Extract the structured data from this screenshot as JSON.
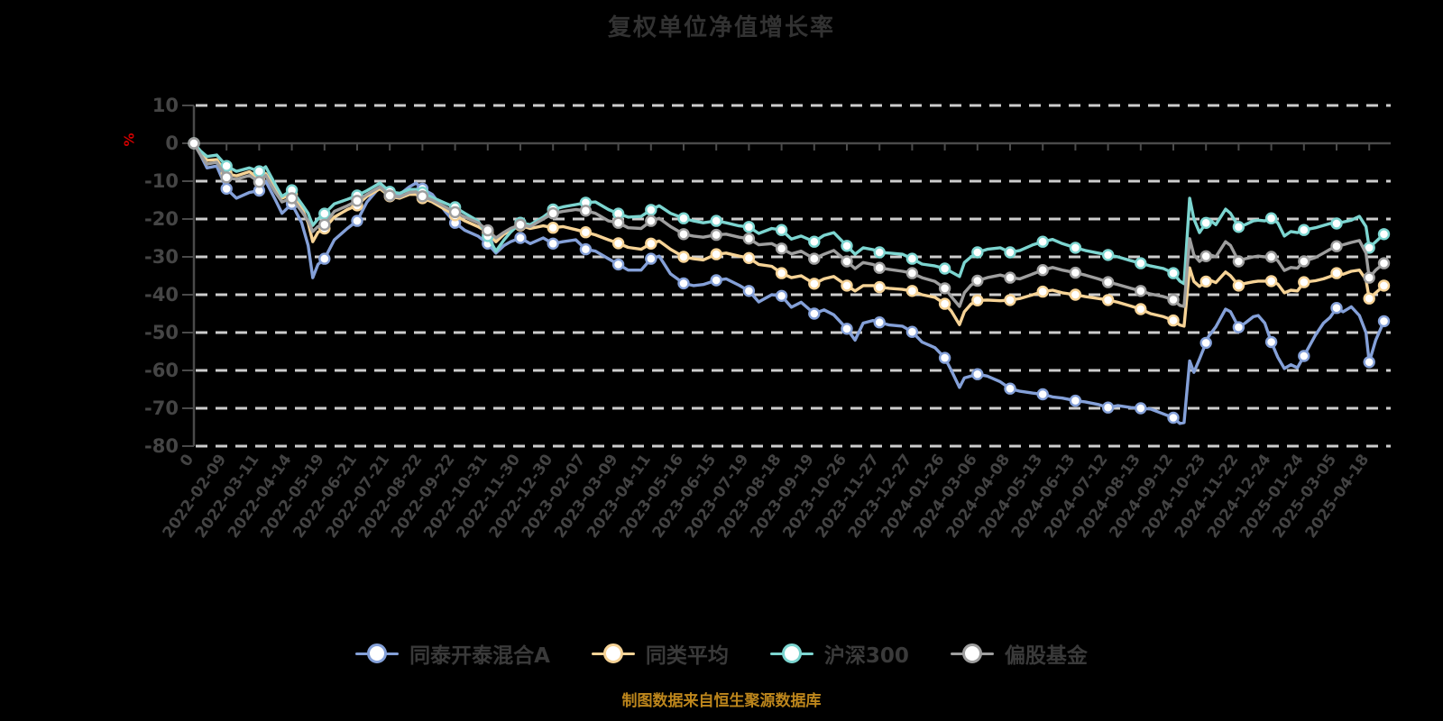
{
  "title": "复权单位净值增长率",
  "footer": "制图数据来自恒生聚源数据库",
  "background_color": "#000000",
  "y_axis": {
    "unit_label": "%",
    "unit_color": "#d40000",
    "ticks": [
      10,
      0,
      -10,
      -20,
      -30,
      -40,
      -50,
      -60,
      -70,
      -80
    ],
    "axis_color": "#4a4a4a",
    "grid_color": "#cdcdcd",
    "label_color": "#454545"
  },
  "legend": {
    "items": [
      {
        "label": "同泰开泰混合A",
        "color": "#84a0d8"
      },
      {
        "label": "同类平均",
        "color": "#f6d396"
      },
      {
        "label": "沪深300",
        "color": "#7cd5d0"
      },
      {
        "label": "偏股基金",
        "color": "#9e9e9e"
      }
    ]
  },
  "chart_data": {
    "type": "line",
    "title": "复权单位净值增长率",
    "ylabel": "%",
    "ylim": [
      -80,
      10
    ],
    "grid": "dashed-horizontal",
    "legend_position": "bottom",
    "x_tick_labels": [
      "0",
      "2022-02-09",
      "2022-03-11",
      "2022-04-14",
      "2022-05-19",
      "2022-06-21",
      "2022-07-21",
      "2022-08-22",
      "2022-09-22",
      "2022-10-31",
      "2022-11-30",
      "2022-12-30",
      "2023-02-07",
      "2023-03-09",
      "2023-04-11",
      "2023-05-16",
      "2023-06-15",
      "2023-07-19",
      "2023-08-18",
      "2023-09-19",
      "2023-10-26",
      "2023-11-27",
      "2023-12-27",
      "2024-01-26",
      "2024-03-06",
      "2024-04-08",
      "2024-05-13",
      "2024-06-13",
      "2024-07-12",
      "2024-08-13",
      "2024-09-12",
      "2024-10-23",
      "2024-11-22",
      "2024-12-24",
      "2025-01-24",
      "2025-03-05",
      "2025-04-18"
    ],
    "x_units": [
      0,
      0.2,
      0.4,
      0.7,
      1,
      1.3,
      1.7,
      2,
      2.2,
      2.5,
      2.7,
      3,
      3.3,
      3.5,
      3.64,
      3.8,
      4,
      4.3,
      4.7,
      5,
      5.3,
      5.7,
      6,
      6.3,
      6.6,
      6.8,
      7,
      7.3,
      7.7,
      8,
      8.3,
      8.7,
      9,
      9.25,
      9.5,
      9.7,
      10,
      10.3,
      10.7,
      11,
      11.3,
      11.7,
      12,
      12.3,
      12.7,
      13,
      13.3,
      13.7,
      14,
      14.25,
      14.6,
      15,
      15.3,
      15.6,
      16,
      16.3,
      16.7,
      17,
      17.3,
      17.7,
      18,
      18.3,
      18.6,
      19,
      19.3,
      19.6,
      20,
      20.25,
      20.5,
      20.8,
      21,
      21.3,
      21.7,
      22,
      22.3,
      22.7,
      23,
      23.2,
      23.45,
      23.6,
      23.8,
      24,
      24.3,
      24.7,
      25,
      25.3,
      25.7,
      26,
      26.3,
      26.6,
      27,
      27.3,
      27.7,
      28,
      28.3,
      28.7,
      29,
      29.3,
      29.7,
      30,
      30.2,
      30.33,
      30.5,
      30.63,
      30.8,
      31.08,
      31.3,
      31.6,
      31.75,
      32,
      32.2,
      32.45,
      32.6,
      32.8,
      33,
      33.2,
      33.4,
      33.6,
      33.8,
      34,
      34.35,
      34.6,
      34.8,
      35,
      35.2,
      35.45,
      35.7,
      35.9,
      36,
      36.2,
      36.45
    ],
    "marker_units": [
      0,
      1,
      2,
      3,
      4,
      5,
      6,
      7,
      8,
      9,
      10,
      11,
      12,
      13,
      14,
      15,
      16,
      17,
      18,
      19,
      20,
      21,
      22,
      23,
      24,
      25,
      26,
      27,
      28,
      29,
      30,
      31,
      32,
      33,
      34,
      35,
      36,
      36.45
    ],
    "series": [
      {
        "name": "同泰开泰混合A",
        "color": "#84a0d8",
        "values": [
          0,
          -3,
          -6.5,
          -6,
          -12,
          -14.5,
          -13,
          -12.5,
          -10,
          -15,
          -18.5,
          -16,
          -21,
          -27,
          -35.5,
          -32,
          -30.5,
          -25.5,
          -22.5,
          -20.5,
          -15.5,
          -11.5,
          -13.5,
          -13.5,
          -11.5,
          -10.5,
          -12,
          -13.5,
          -18,
          -21,
          -23,
          -24.5,
          -26.5,
          -29,
          -27,
          -26,
          -25,
          -26.5,
          -25,
          -26.5,
          -26,
          -25.5,
          -28,
          -28.5,
          -30.5,
          -32,
          -33.5,
          -33.5,
          -30.5,
          -29.8,
          -34.5,
          -37,
          -37.6,
          -37.3,
          -36.2,
          -35.8,
          -37.5,
          -39,
          -41.9,
          -40,
          -40.3,
          -43.3,
          -42,
          -45,
          -44,
          -45.3,
          -49,
          -52,
          -47.5,
          -46.8,
          -47.3,
          -48,
          -48.3,
          -49.8,
          -52.5,
          -54,
          -56.7,
          -60,
          -64.5,
          -62,
          -61.5,
          -61,
          -61.5,
          -63,
          -64.8,
          -65.5,
          -66,
          -66.3,
          -67,
          -67.3,
          -68,
          -68.3,
          -69,
          -69.8,
          -69.3,
          -69.8,
          -70,
          -70.2,
          -71.5,
          -72.5,
          -74,
          -73.8,
          -57.5,
          -60.5,
          -57,
          -51,
          -48.5,
          -43.8,
          -44.5,
          -48.6,
          -47.5,
          -45.8,
          -45.5,
          -47.5,
          -52.5,
          -56.5,
          -59.5,
          -58.5,
          -59.3,
          -56.2,
          -50.7,
          -47.5,
          -46,
          -43.5,
          -44.5,
          -43.2,
          -45.5,
          -50,
          -57.8,
          -52,
          -47
        ]
      },
      {
        "name": "同类平均",
        "color": "#f6d396",
        "values": [
          0,
          -2.5,
          -4.5,
          -4.3,
          -8,
          -8.6,
          -7.5,
          -9.3,
          -8,
          -12,
          -14.5,
          -13.5,
          -17,
          -21,
          -26,
          -23.5,
          -22.5,
          -19.5,
          -17.5,
          -16.4,
          -14,
          -12,
          -14,
          -14.5,
          -13.5,
          -13.5,
          -14.5,
          -15.5,
          -17.5,
          -19,
          -20.5,
          -22,
          -23.5,
          -26,
          -24,
          -23,
          -21.7,
          -22.5,
          -21.8,
          -22.3,
          -22,
          -22.8,
          -23.5,
          -24.2,
          -25.5,
          -26.4,
          -27.5,
          -28,
          -26.5,
          -25.8,
          -28,
          -30,
          -30.5,
          -30.8,
          -29.3,
          -29,
          -29.8,
          -30.3,
          -32,
          -32.5,
          -34.3,
          -35.5,
          -35,
          -37.1,
          -35.8,
          -35.2,
          -37.6,
          -39,
          -37.6,
          -37.6,
          -38,
          -38.3,
          -38.6,
          -39,
          -40,
          -40.7,
          -42.4,
          -44.3,
          -47.9,
          -44.5,
          -42.5,
          -41.5,
          -41.4,
          -41.6,
          -41.4,
          -41,
          -40,
          -39.2,
          -38.8,
          -39.5,
          -40,
          -40.5,
          -41,
          -41.4,
          -42,
          -43,
          -43.8,
          -45,
          -45.8,
          -46.8,
          -48,
          -48.3,
          -32.9,
          -36.5,
          -37.8,
          -36,
          -36.8,
          -34,
          -35,
          -37.6,
          -37,
          -36.6,
          -36.4,
          -36.4,
          -36.4,
          -37.2,
          -39.5,
          -38.8,
          -39,
          -36.7,
          -36.3,
          -35.8,
          -35.2,
          -34.3,
          -34.6,
          -33.8,
          -33.5,
          -36,
          -41,
          -39.5,
          -37.6
        ]
      },
      {
        "name": "沪深300",
        "color": "#7cd5d0",
        "values": [
          0,
          -2,
          -3.5,
          -3.1,
          -6,
          -7.4,
          -6.5,
          -7.4,
          -6.2,
          -11,
          -14,
          -12.4,
          -16,
          -18.5,
          -21.7,
          -20,
          -18.6,
          -16,
          -14.8,
          -13.8,
          -12.5,
          -10.5,
          -12.8,
          -13.2,
          -12.2,
          -12.2,
          -13,
          -14.3,
          -15.8,
          -16.9,
          -18.5,
          -20.5,
          -24.5,
          -28.5,
          -25.5,
          -23.5,
          -21,
          -21.5,
          -19.5,
          -17.5,
          -16.8,
          -16.2,
          -15.7,
          -15.5,
          -17.5,
          -18.6,
          -19.5,
          -19.3,
          -17.6,
          -16.5,
          -18.5,
          -19.8,
          -20.5,
          -21,
          -20.5,
          -21,
          -21.8,
          -22.1,
          -23.8,
          -22.5,
          -22.9,
          -25.3,
          -24.5,
          -26,
          -24.3,
          -23.6,
          -27.1,
          -29.3,
          -27.6,
          -28.1,
          -28.8,
          -29,
          -29.3,
          -30.5,
          -31.9,
          -32.4,
          -33.1,
          -34,
          -35.2,
          -31.5,
          -30,
          -28.8,
          -28,
          -27.6,
          -28.8,
          -28.3,
          -26.8,
          -26,
          -25.4,
          -26.5,
          -27.6,
          -28.3,
          -29,
          -29.5,
          -30,
          -31,
          -31.7,
          -32.4,
          -33.1,
          -34.3,
          -36.4,
          -37.1,
          -14.5,
          -20,
          -23.6,
          -20,
          -21.5,
          -17.4,
          -18.5,
          -22.1,
          -21.5,
          -20.5,
          -20.3,
          -20.5,
          -19.8,
          -21,
          -24.5,
          -23.3,
          -23.6,
          -22.9,
          -22.3,
          -21.7,
          -21.2,
          -21.2,
          -20.8,
          -20.3,
          -19.3,
          -22,
          -27.6,
          -26,
          -24
        ]
      },
      {
        "name": "偏股基金",
        "color": "#9e9e9e",
        "values": [
          0,
          -3,
          -5.5,
          -5,
          -9,
          -9.5,
          -8.5,
          -10.2,
          -8.5,
          -13,
          -15.5,
          -14.5,
          -18,
          -20.5,
          -23.3,
          -22,
          -21.5,
          -18,
          -16.5,
          -15.2,
          -13.5,
          -11.5,
          -13.8,
          -14.2,
          -13,
          -12.8,
          -14,
          -15,
          -16.8,
          -18.2,
          -19.5,
          -21,
          -23,
          -25,
          -23.5,
          -22.5,
          -21.5,
          -22,
          -20,
          -18.5,
          -18,
          -17.5,
          -17.8,
          -18.5,
          -20.5,
          -21,
          -22.3,
          -22.5,
          -20.5,
          -19.8,
          -22,
          -24,
          -24.5,
          -24.8,
          -24.2,
          -24,
          -24.8,
          -25.2,
          -26.8,
          -26.5,
          -27.8,
          -29.2,
          -28.5,
          -30.5,
          -29.3,
          -28.3,
          -31.2,
          -33.1,
          -31.5,
          -32,
          -32.9,
          -33.3,
          -33.8,
          -34.3,
          -35.5,
          -36.5,
          -38.3,
          -40.5,
          -43.1,
          -39.5,
          -37.5,
          -36.3,
          -35.5,
          -34.8,
          -35.5,
          -35.8,
          -34.5,
          -33.5,
          -32.8,
          -33.5,
          -34.2,
          -34.8,
          -35.8,
          -36.7,
          -37.3,
          -38.3,
          -39,
          -39.8,
          -40.5,
          -41.3,
          -42.8,
          -43.1,
          -25.2,
          -29.5,
          -31.2,
          -29.3,
          -30,
          -26,
          -27,
          -31.2,
          -30.5,
          -30,
          -29.8,
          -30,
          -30,
          -31,
          -33.6,
          -32.8,
          -33,
          -31.2,
          -30.2,
          -29,
          -28,
          -27.2,
          -26.8,
          -26.2,
          -25.7,
          -29,
          -35.5,
          -33.5,
          -31.7
        ]
      }
    ]
  }
}
